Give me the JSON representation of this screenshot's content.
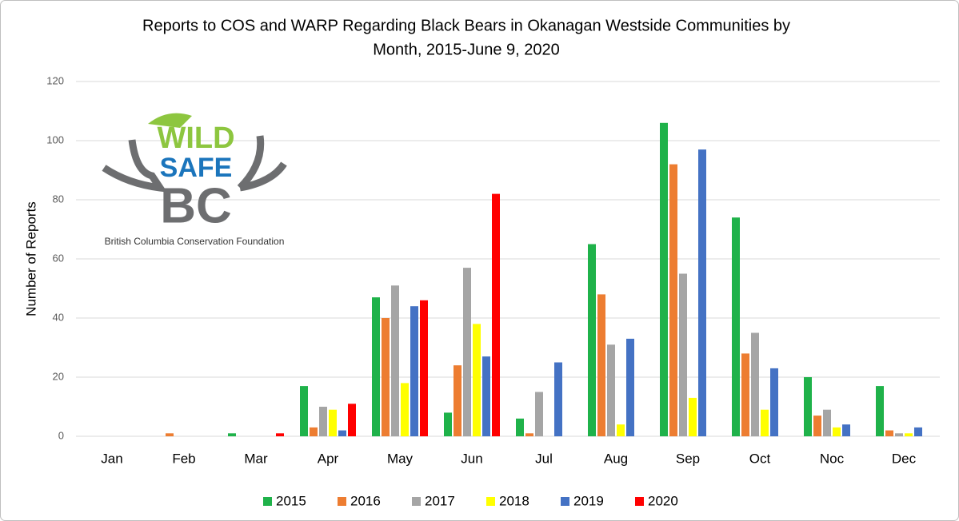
{
  "chart_data": {
    "type": "bar",
    "title": "Reports to COS and WARP Regarding Black Bears in Okanagan Westside Communities by",
    "subtitle": "Month, 2015-June 9, 2020",
    "y_label": "Number of Reports",
    "logo": {
      "line1": "WILD",
      "line2": "SAFE",
      "line3": "BC",
      "caption": "British Columbia Conservation Foundation"
    },
    "categories": [
      "Jan",
      "Feb",
      "Mar",
      "Apr",
      "May",
      "Jun",
      "Jul",
      "Aug",
      "Sep",
      "Oct",
      "Noc",
      "Dec"
    ],
    "series": [
      {
        "name": "2015",
        "color": "#1fb24a",
        "values": [
          0,
          0,
          1,
          17,
          47,
          8,
          6,
          65,
          106,
          74,
          20,
          17
        ]
      },
      {
        "name": "2016",
        "color": "#ed7d31",
        "values": [
          0,
          1,
          0,
          3,
          40,
          24,
          1,
          48,
          92,
          28,
          7,
          2
        ]
      },
      {
        "name": "2017",
        "color": "#a5a5a5",
        "values": [
          0,
          0,
          0,
          10,
          51,
          57,
          15,
          31,
          55,
          35,
          9,
          1
        ]
      },
      {
        "name": "2018",
        "color": "#ffff00",
        "values": [
          0,
          0,
          0,
          9,
          18,
          38,
          0,
          4,
          13,
          9,
          3,
          1
        ]
      },
      {
        "name": "2019",
        "color": "#4472c4",
        "values": [
          0,
          0,
          0,
          2,
          44,
          27,
          25,
          33,
          97,
          23,
          4,
          3
        ]
      },
      {
        "name": "2020",
        "color": "#ff0000",
        "values": [
          0,
          0,
          1,
          11,
          46,
          82,
          null,
          null,
          null,
          null,
          null,
          null
        ]
      }
    ],
    "ylim": [
      0,
      120
    ],
    "yticks": [
      0,
      20,
      40,
      60,
      80,
      100,
      120
    ],
    "grid": true,
    "legend": "bottom"
  }
}
